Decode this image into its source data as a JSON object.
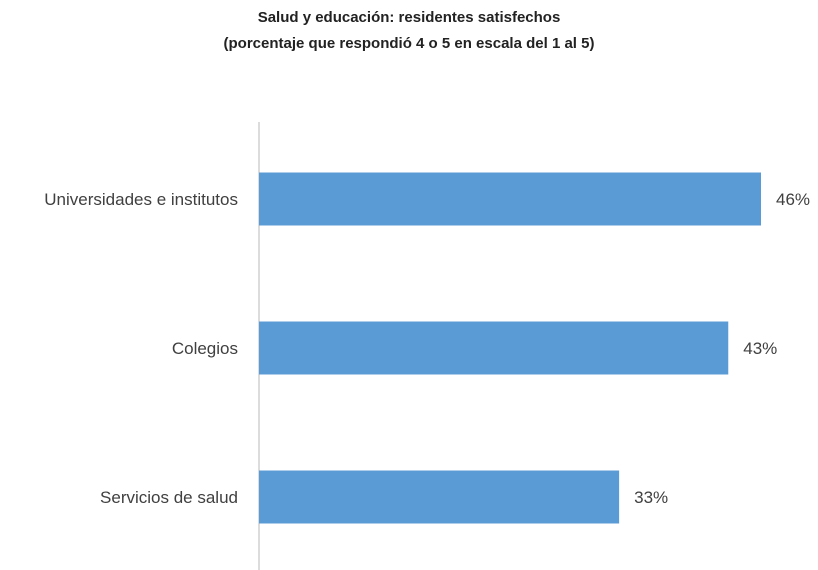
{
  "chart_data": {
    "type": "bar",
    "orientation": "horizontal",
    "title": "Salud y educación: residentes satisfechos",
    "subtitle": "(porcentaje que respondió 4 o 5 en escala del 1 al 5)",
    "categories": [
      "Universidades e institutos",
      "Colegios",
      "Servicios de salud"
    ],
    "values": [
      46,
      43,
      33
    ],
    "value_labels": [
      "46%",
      "43%",
      "33%"
    ],
    "value_unit": "%",
    "xlim": [
      0,
      50
    ],
    "grid": false,
    "legend": "none",
    "colors": {
      "bar": "#5b9bd5",
      "axis": "#d0d0d0",
      "text": "#404040"
    }
  }
}
